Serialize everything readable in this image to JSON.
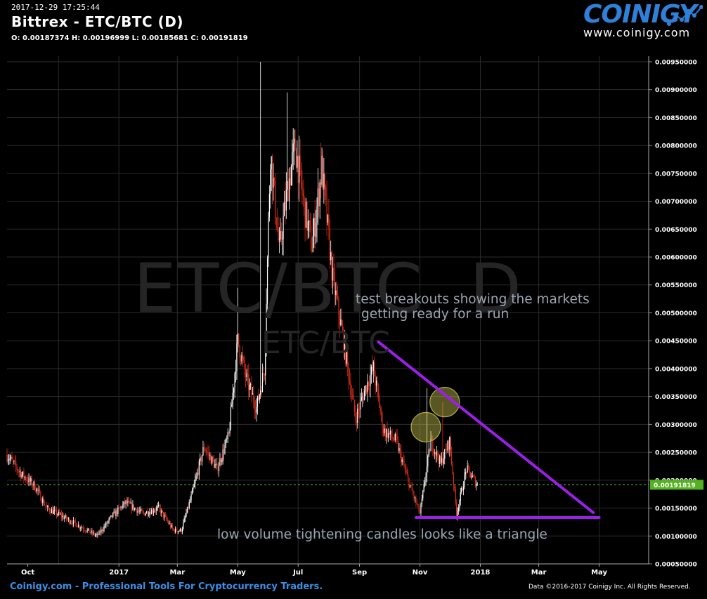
{
  "header": {
    "timestamp": "2017-12-29 17:25:44",
    "title": "Bittrex - ETC/BTC (D)",
    "ohlc": "O: 0.00187374 H: 0.00196999 L: 0.00185681 C: 0.00191819"
  },
  "logo": {
    "name": "COINIGY",
    "url": "www.coinigy.com",
    "color": "#2f80d9"
  },
  "watermark": {
    "big": "ETC/BTC  D",
    "small": "ETC/BTC"
  },
  "annotations": {
    "line1": "test breakouts showing the markets",
    "line2": "getting ready for a run",
    "line3": "low volume tightening candles looks like a triangle"
  },
  "footer": {
    "left": "Coinigy.com - Professional Tools For Cryptocurrency Traders.",
    "right": "Data ©2016-2017 Coinigy Inc. All Rights Reserved."
  },
  "chart_data": {
    "type": "candlestick",
    "title": "Bittrex - ETC/BTC (D)",
    "x_tick_labels": [
      "Oct",
      "2017",
      "Mar",
      "May",
      "Jul",
      "Sep",
      "Nov",
      "2018",
      "Mar",
      "May"
    ],
    "y_tick_labels": [
      "0.00950000",
      "0.00900000",
      "0.00850000",
      "0.00800000",
      "0.00750000",
      "0.00700000",
      "0.00650000",
      "0.00600000",
      "0.00550000",
      "0.00500000",
      "0.00450000",
      "0.00400000",
      "0.00350000",
      "0.00300000",
      "0.00250000",
      "0.00200000",
      "0.00150000",
      "0.00100000",
      "0.00050000"
    ],
    "ylim": [
      0.0005,
      0.0096
    ],
    "x_range": [
      "2016-09-10",
      "2018-06-20"
    ],
    "current_price": "0.00191819",
    "grid": true,
    "colors": {
      "up": "#ffffff",
      "down": "#dc2b16",
      "current_price": "#53b31e",
      "trendline": "#9b1fe8",
      "circle": "#b3b140",
      "grid": "#2b2b2b"
    },
    "price_path": [
      [
        "2016-09-10",
        0.00245
      ],
      [
        "2016-09-25",
        0.0021
      ],
      [
        "2016-10-08",
        0.0019
      ],
      [
        "2016-10-20",
        0.0015
      ],
      [
        "2016-11-05",
        0.00135
      ],
      [
        "2016-11-20",
        0.0012
      ],
      [
        "2016-12-10",
        0.001
      ],
      [
        "2016-12-25",
        0.00135
      ],
      [
        "2017-01-08",
        0.0016
      ],
      [
        "2017-01-25",
        0.0014
      ],
      [
        "2017-02-10",
        0.0015
      ],
      [
        "2017-02-25",
        0.0011
      ],
      [
        "2017-03-05",
        0.0011
      ],
      [
        "2017-03-15",
        0.0017
      ],
      [
        "2017-03-28",
        0.0026
      ],
      [
        "2017-04-10",
        0.0022
      ],
      [
        "2017-04-22",
        0.0028
      ],
      [
        "2017-05-01",
        0.0045
      ],
      [
        "2017-05-10",
        0.0038
      ],
      [
        "2017-05-20",
        0.0033
      ],
      [
        "2017-05-28",
        0.004
      ],
      [
        "2017-06-03",
        0.0079
      ],
      [
        "2017-06-12",
        0.0061
      ],
      [
        "2017-06-20",
        0.0072
      ],
      [
        "2017-06-28",
        0.008
      ],
      [
        "2017-07-08",
        0.0068
      ],
      [
        "2017-07-15",
        0.0062
      ],
      [
        "2017-07-25",
        0.0076
      ],
      [
        "2017-08-05",
        0.0056
      ],
      [
        "2017-08-15",
        0.0046
      ],
      [
        "2017-08-28",
        0.0031
      ],
      [
        "2017-09-08",
        0.0037
      ],
      [
        "2017-09-15",
        0.004
      ],
      [
        "2017-09-25",
        0.0029
      ],
      [
        "2017-10-08",
        0.0027
      ],
      [
        "2017-10-20",
        0.002
      ],
      [
        "2017-11-01",
        0.0014
      ],
      [
        "2017-11-12",
        0.0027
      ],
      [
        "2017-11-22",
        0.0023
      ],
      [
        "2017-12-01",
        0.0027
      ],
      [
        "2017-12-08",
        0.0014
      ],
      [
        "2017-12-18",
        0.0022
      ],
      [
        "2017-12-29",
        0.00192
      ]
    ],
    "spikes": [
      [
        "2017-05-24",
        0.0095
      ],
      [
        "2017-06-20",
        0.00895
      ],
      [
        "2017-07-24",
        0.00805
      ],
      [
        "2017-05-01",
        0.00545
      ],
      [
        "2017-11-08",
        0.00365
      ],
      [
        "2017-11-24",
        0.0034
      ]
    ],
    "trendlines": [
      {
        "from": [
          "2017-09-20",
          0.00448
        ],
        "to": [
          "2018-04-25",
          0.00142
        ]
      },
      {
        "from": [
          "2017-10-28",
          0.00133
        ],
        "to": [
          "2018-05-01",
          0.00133
        ]
      }
    ],
    "circles": [
      [
        "2017-11-07",
        0.00295
      ],
      [
        "2017-11-26",
        0.0034
      ]
    ]
  }
}
